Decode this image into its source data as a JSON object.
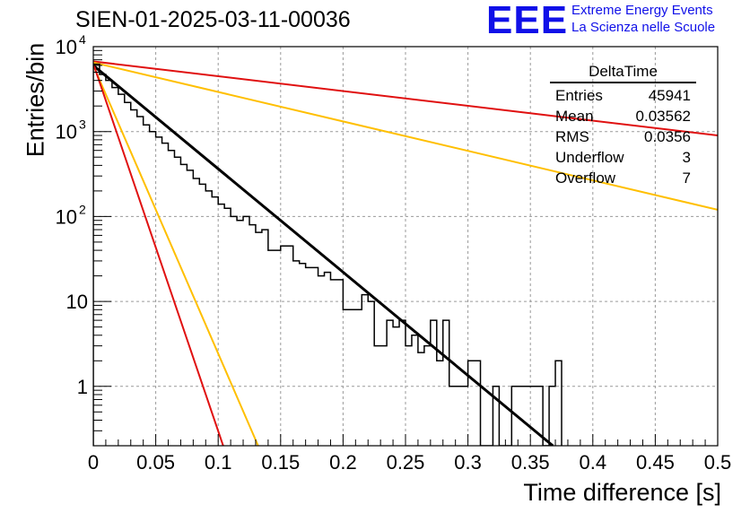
{
  "header": {
    "title": "SIEN-01-2025-03-11-00036",
    "logo": "EEE",
    "org_line1": "Extreme Energy Events",
    "org_line2": "La Scienza nelle Scuole"
  },
  "stats": {
    "name": "DeltaTime",
    "rows": [
      {
        "label": "Entries",
        "value": "45941"
      },
      {
        "label": "Mean",
        "value": "0.03562"
      },
      {
        "label": "RMS",
        "value": "0.0356"
      },
      {
        "label": "Underflow",
        "value": "3"
      },
      {
        "label": "Overflow",
        "value": "7"
      }
    ]
  },
  "colors": {
    "histogram": "#000000",
    "fit": "#000000",
    "red": "#e01010",
    "orange": "#ffbf00",
    "grid": "#9a9a9a"
  },
  "chart_data": {
    "type": "line",
    "title": "SIEN-01-2025-03-11-00036",
    "xlabel": "Time difference [s]",
    "ylabel": "Entries/bin",
    "xlim": [
      0,
      0.5
    ],
    "ylim": [
      0.2,
      10000
    ],
    "yscale": "log",
    "grid": true,
    "xticks": [
      "0",
      "0.05",
      "0.1",
      "0.15",
      "0.2",
      "0.25",
      "0.3",
      "0.35",
      "0.4",
      "0.45",
      "0.5"
    ],
    "xtick_values": [
      0,
      0.05,
      0.1,
      0.15,
      0.2,
      0.25,
      0.3,
      0.35,
      0.4,
      0.45,
      0.5
    ],
    "yticks": [
      {
        "value": 1,
        "label": "1"
      },
      {
        "value": 10,
        "label": "10"
      },
      {
        "value": 100,
        "label": "10",
        "exp": "2"
      },
      {
        "value": 1000,
        "label": "10",
        "exp": "3"
      },
      {
        "value": 10000,
        "label": "10",
        "exp": "4"
      }
    ],
    "histogram": {
      "name": "DeltaTime",
      "bin_width": 0.005,
      "values": [
        6200,
        4700,
        4000,
        3300,
        2750,
        2200,
        1800,
        1500,
        1200,
        1000,
        860,
        730,
        600,
        500,
        410,
        350,
        280,
        240,
        200,
        170,
        140,
        125,
        100,
        90,
        100,
        80,
        65,
        70,
        40,
        40,
        45,
        45,
        30,
        28,
        25,
        25,
        20,
        22,
        18,
        18,
        8,
        8,
        8,
        12,
        10,
        3,
        3,
        6,
        5,
        6,
        3,
        4,
        2.5,
        3,
        6,
        2,
        6,
        1,
        1,
        1,
        2,
        2,
        0.2,
        0.2,
        1,
        0,
        0,
        1,
        1,
        1,
        1,
        1,
        0,
        1,
        2
      ]
    },
    "curves": [
      {
        "name": "exponential-fit",
        "color": "#000000",
        "y0": 6000,
        "y_end": 0.2,
        "x_end": 0.368
      },
      {
        "name": "slow-red",
        "color": "#e01010",
        "y0": 6700,
        "y_end": 900,
        "x_end": 0.5
      },
      {
        "name": "slow-orange",
        "color": "#ffbf00",
        "y0": 6500,
        "y_end": 120,
        "x_end": 0.5
      },
      {
        "name": "fast-orange",
        "color": "#ffbf00",
        "y0": 6000,
        "y_end": 0.2,
        "x_end": 0.132
      },
      {
        "name": "fast-red",
        "color": "#e01010",
        "y0": 6300,
        "y_end": 0.2,
        "x_end": 0.104
      }
    ]
  }
}
